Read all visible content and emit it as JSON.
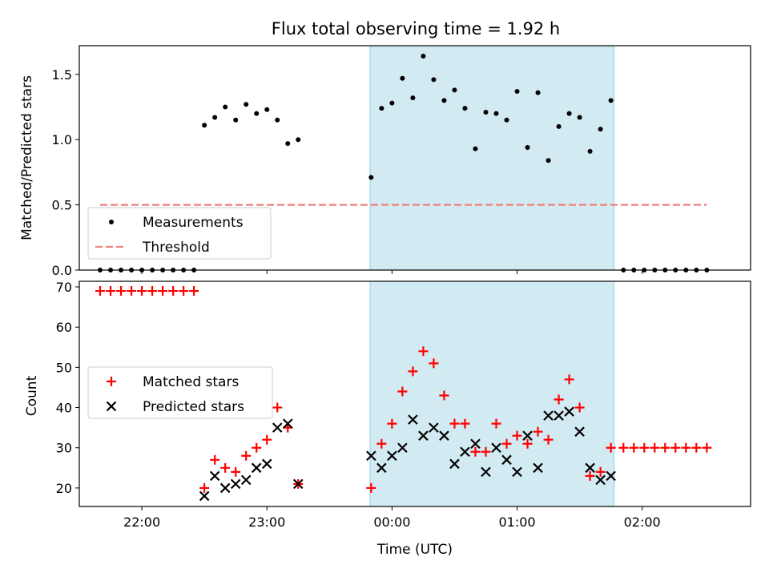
{
  "title": "Flux total observing time = 1.92 h",
  "colors": {
    "shade": "#add8e6",
    "measurement": "#000000",
    "threshold": "#f08080",
    "matched": "#ff0000",
    "predicted": "#000000"
  },
  "chart_data": [
    {
      "type": "scatter",
      "ylabel": "Matched/Predicted stars",
      "ylim": [
        0,
        1.72
      ],
      "yticks": [
        0.0,
        0.5,
        1.0,
        1.5
      ],
      "ytick_labels": [
        "0.0",
        "0.5",
        "1.0",
        "1.5"
      ],
      "xlim": [
        -30,
        292
      ],
      "xticks": [
        0,
        60,
        120,
        180,
        240
      ],
      "shaded_span": [
        109.5,
        226.5
      ],
      "legend": {
        "placement": "lower-left",
        "entries": [
          "Measurements",
          "Threshold"
        ]
      },
      "threshold": {
        "name": "Threshold",
        "value": 0.5,
        "x_range": [
          -20,
          271
        ]
      },
      "series": [
        {
          "name": "Measurements",
          "points": [
            [
              -20,
              0
            ],
            [
              -15,
              0
            ],
            [
              -10,
              0
            ],
            [
              -5,
              0
            ],
            [
              0,
              0
            ],
            [
              5,
              0
            ],
            [
              10,
              0
            ],
            [
              15,
              0
            ],
            [
              20,
              0
            ],
            [
              25,
              0
            ],
            [
              30,
              1.11
            ],
            [
              35,
              1.17
            ],
            [
              40,
              1.25
            ],
            [
              45,
              1.15
            ],
            [
              50,
              1.27
            ],
            [
              55,
              1.2
            ],
            [
              60,
              1.23
            ],
            [
              65,
              1.15
            ],
            [
              70,
              0.97
            ],
            [
              75,
              1.0
            ],
            [
              110,
              0.71
            ],
            [
              115,
              1.24
            ],
            [
              120,
              1.28
            ],
            [
              125,
              1.47
            ],
            [
              130,
              1.32
            ],
            [
              135,
              1.64
            ],
            [
              140,
              1.46
            ],
            [
              145,
              1.3
            ],
            [
              150,
              1.38
            ],
            [
              155,
              1.24
            ],
            [
              160,
              0.93
            ],
            [
              165,
              1.21
            ],
            [
              170,
              1.2
            ],
            [
              175,
              1.15
            ],
            [
              180,
              1.37
            ],
            [
              185,
              0.94
            ],
            [
              190,
              1.36
            ],
            [
              195,
              0.84
            ],
            [
              200,
              1.1
            ],
            [
              205,
              1.2
            ],
            [
              210,
              1.17
            ],
            [
              215,
              0.91
            ],
            [
              220,
              1.08
            ],
            [
              225,
              1.3
            ],
            [
              231,
              0
            ],
            [
              236,
              0
            ],
            [
              241,
              0
            ],
            [
              246,
              0
            ],
            [
              251,
              0
            ],
            [
              256,
              0
            ],
            [
              261,
              0
            ],
            [
              266,
              0
            ],
            [
              271,
              0
            ]
          ]
        }
      ]
    },
    {
      "type": "scatter",
      "xlabel": "Time (UTC)",
      "ylabel": "Count",
      "ylim": [
        15.4,
        71.4
      ],
      "yticks": [
        20,
        30,
        40,
        50,
        60,
        70
      ],
      "ytick_labels": [
        "20",
        "30",
        "40",
        "50",
        "60",
        "70"
      ],
      "xlim": [
        -30,
        292
      ],
      "xticks": [
        0,
        60,
        120,
        180,
        240
      ],
      "xtick_labels": [
        "22:00",
        "23:00",
        "00:00",
        "01:00",
        "02:00"
      ],
      "shaded_span": [
        109.5,
        226.5
      ],
      "legend": {
        "placement": "center-left",
        "entries": [
          "Matched stars",
          "Predicted stars"
        ]
      },
      "series": [
        {
          "name": "Matched stars",
          "marker": "plus",
          "points": [
            [
              -20,
              69
            ],
            [
              -15,
              69
            ],
            [
              -10,
              69
            ],
            [
              -5,
              69
            ],
            [
              0,
              69
            ],
            [
              5,
              69
            ],
            [
              10,
              69
            ],
            [
              15,
              69
            ],
            [
              20,
              69
            ],
            [
              25,
              69
            ],
            [
              30,
              20
            ],
            [
              35,
              27
            ],
            [
              40,
              25
            ],
            [
              45,
              24
            ],
            [
              50,
              28
            ],
            [
              55,
              30
            ],
            [
              60,
              32
            ],
            [
              65,
              40
            ],
            [
              70,
              35
            ],
            [
              75,
              21
            ],
            [
              110,
              20
            ],
            [
              115,
              31
            ],
            [
              120,
              36
            ],
            [
              125,
              44
            ],
            [
              130,
              49
            ],
            [
              135,
              54
            ],
            [
              140,
              51
            ],
            [
              145,
              43
            ],
            [
              150,
              36
            ],
            [
              155,
              36
            ],
            [
              160,
              29
            ],
            [
              165,
              29
            ],
            [
              170,
              36
            ],
            [
              175,
              31
            ],
            [
              180,
              33
            ],
            [
              185,
              31
            ],
            [
              190,
              34
            ],
            [
              195,
              32
            ],
            [
              200,
              42
            ],
            [
              205,
              47
            ],
            [
              210,
              40
            ],
            [
              215,
              23
            ],
            [
              220,
              24
            ],
            [
              225,
              30
            ],
            [
              231,
              30
            ],
            [
              236,
              30
            ],
            [
              241,
              30
            ],
            [
              246,
              30
            ],
            [
              251,
              30
            ],
            [
              256,
              30
            ],
            [
              261,
              30
            ],
            [
              266,
              30
            ],
            [
              271,
              30
            ]
          ]
        },
        {
          "name": "Predicted stars",
          "marker": "x",
          "points": [
            [
              30,
              18
            ],
            [
              35,
              23
            ],
            [
              40,
              20
            ],
            [
              45,
              21
            ],
            [
              50,
              22
            ],
            [
              55,
              25
            ],
            [
              60,
              26
            ],
            [
              65,
              35
            ],
            [
              70,
              36
            ],
            [
              75,
              21
            ],
            [
              110,
              28
            ],
            [
              115,
              25
            ],
            [
              120,
              28
            ],
            [
              125,
              30
            ],
            [
              130,
              37
            ],
            [
              135,
              33
            ],
            [
              140,
              35
            ],
            [
              145,
              33
            ],
            [
              150,
              26
            ],
            [
              155,
              29
            ],
            [
              160,
              31
            ],
            [
              165,
              24
            ],
            [
              170,
              30
            ],
            [
              175,
              27
            ],
            [
              180,
              24
            ],
            [
              185,
              33
            ],
            [
              190,
              25
            ],
            [
              195,
              38
            ],
            [
              200,
              38
            ],
            [
              205,
              39
            ],
            [
              210,
              34
            ],
            [
              215,
              25
            ],
            [
              220,
              22
            ],
            [
              225,
              23
            ]
          ]
        }
      ]
    }
  ]
}
